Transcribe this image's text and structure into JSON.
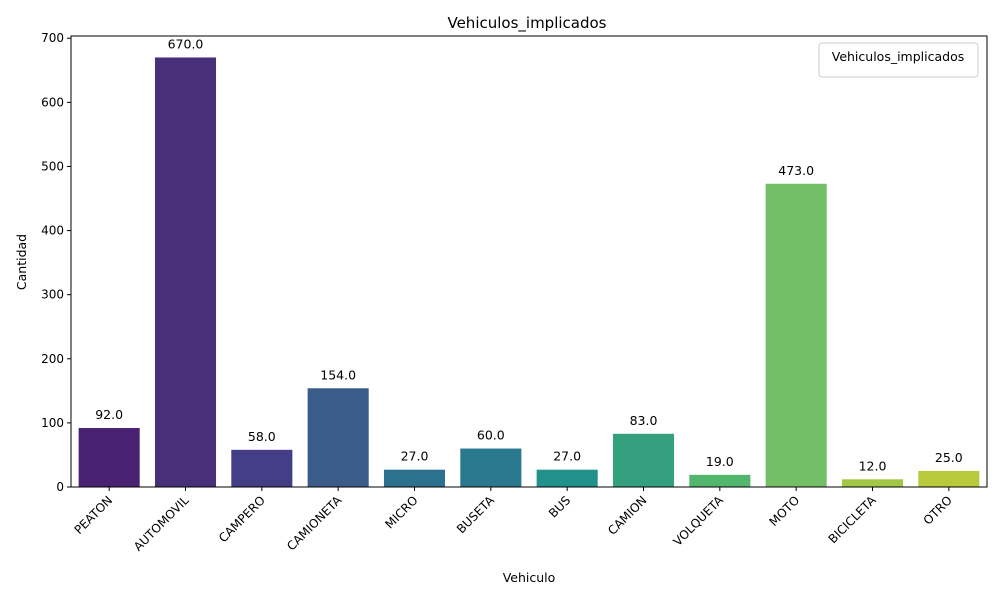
{
  "chart_data": {
    "type": "bar",
    "title": "Vehiculos_implicados",
    "xlabel": "Vehiculo",
    "ylabel": "Cantidad",
    "categories": [
      "PEATON",
      "AUTOMOVIL",
      "CAMPERO",
      "CAMIONETA",
      "MICRO",
      "BUSETA",
      "BUS",
      "CAMION",
      "VOLQUETA",
      "MOTO",
      "BICICLETA",
      "OTRO"
    ],
    "values": [
      92,
      670,
      58,
      154,
      27,
      60,
      27,
      83,
      19,
      473,
      12,
      25
    ],
    "data_labels": [
      "92.0",
      "670.0",
      "58.0",
      "154.0",
      "27.0",
      "60.0",
      "27.0",
      "83.0",
      "19.0",
      "473.0",
      "12.0",
      "25.0"
    ],
    "colors": [
      "#482173",
      "#482f7a",
      "#433e85",
      "#3a5c8a",
      "#2c718e",
      "#2a788e",
      "#21918c",
      "#35a07e",
      "#52b66e",
      "#73bf68",
      "#a2c645",
      "#b9c93c"
    ],
    "yticks": [
      0,
      100,
      200,
      300,
      400,
      500,
      600,
      700
    ],
    "ylim": [
      0,
      703.5
    ],
    "grid": false,
    "legend": {
      "title": "Vehiculos_implicados",
      "placement": "top-right"
    }
  }
}
